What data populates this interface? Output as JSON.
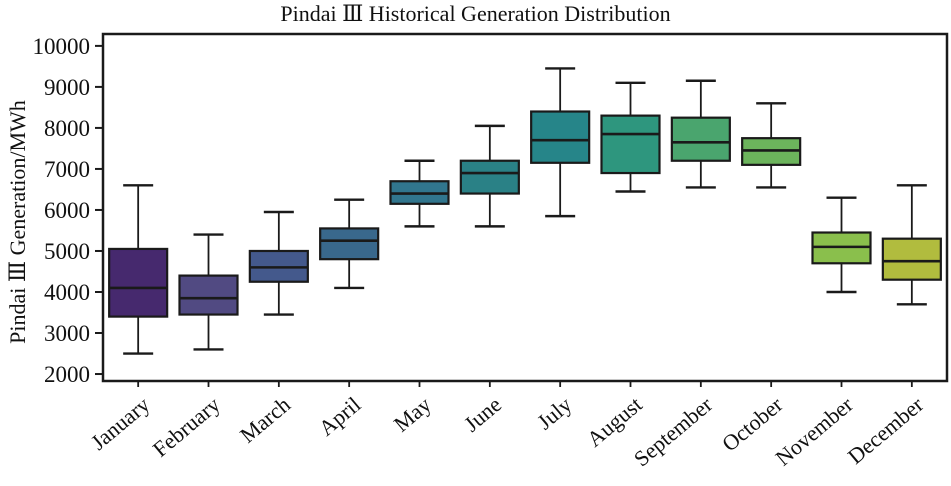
{
  "figure": {
    "background": "#ffffff",
    "axis_color": "#1a1a1a",
    "line_color": "#1a1a1a"
  },
  "chart_data": {
    "type": "box",
    "title": "Pindai Ⅲ Historical Generation Distribution",
    "ylabel": "Pindai Ⅲ Generation/MWh",
    "xlabel": "",
    "grid": false,
    "legend": "none",
    "ylim": [
      1830,
      10290
    ],
    "yticks": [
      2000,
      3000,
      4000,
      5000,
      6000,
      7000,
      8000,
      9000,
      10000
    ],
    "categories": [
      "January",
      "February",
      "March",
      "April",
      "May",
      "June",
      "July",
      "August",
      "September",
      "October",
      "November",
      "December"
    ],
    "series": [
      {
        "name": "January",
        "whisker_low": 2500,
        "q1": 3400,
        "median": 4100,
        "q3": 5050,
        "whisker_high": 6600,
        "color": "#46296e"
      },
      {
        "name": "February",
        "whisker_low": 2600,
        "q1": 3450,
        "median": 3850,
        "q3": 4400,
        "whisker_high": 5400,
        "color": "#514a82"
      },
      {
        "name": "March",
        "whisker_low": 3450,
        "q1": 4250,
        "median": 4600,
        "q3": 5000,
        "whisker_high": 5950,
        "color": "#44598c"
      },
      {
        "name": "April",
        "whisker_low": 4100,
        "q1": 4800,
        "median": 5250,
        "q3": 5550,
        "whisker_high": 6250,
        "color": "#39688c"
      },
      {
        "name": "May",
        "whisker_low": 5600,
        "q1": 6150,
        "median": 6400,
        "q3": 6700,
        "whisker_high": 7200,
        "color": "#31768e"
      },
      {
        "name": "June",
        "whisker_low": 5600,
        "q1": 6400,
        "median": 6900,
        "q3": 7200,
        "whisker_high": 8050,
        "color": "#2a8186"
      },
      {
        "name": "July",
        "whisker_low": 5850,
        "q1": 7150,
        "median": 7700,
        "q3": 8400,
        "whisker_high": 9450,
        "color": "#268589"
      },
      {
        "name": "August",
        "whisker_low": 6450,
        "q1": 6900,
        "median": 7850,
        "q3": 8300,
        "whisker_high": 9100,
        "color": "#2e967e"
      },
      {
        "name": "September",
        "whisker_low": 6550,
        "q1": 7200,
        "median": 7650,
        "q3": 8250,
        "whisker_high": 9150,
        "color": "#4aa56e"
      },
      {
        "name": "October",
        "whisker_low": 6550,
        "q1": 7100,
        "median": 7450,
        "q3": 7750,
        "whisker_high": 8600,
        "color": "#6cb45c"
      },
      {
        "name": "November",
        "whisker_low": 4000,
        "q1": 4700,
        "median": 5100,
        "q3": 5450,
        "whisker_high": 6300,
        "color": "#8abf4c"
      },
      {
        "name": "December",
        "whisker_low": 3700,
        "q1": 4300,
        "median": 4750,
        "q3": 5300,
        "whisker_high": 6600,
        "color": "#b1bc3e"
      }
    ]
  }
}
